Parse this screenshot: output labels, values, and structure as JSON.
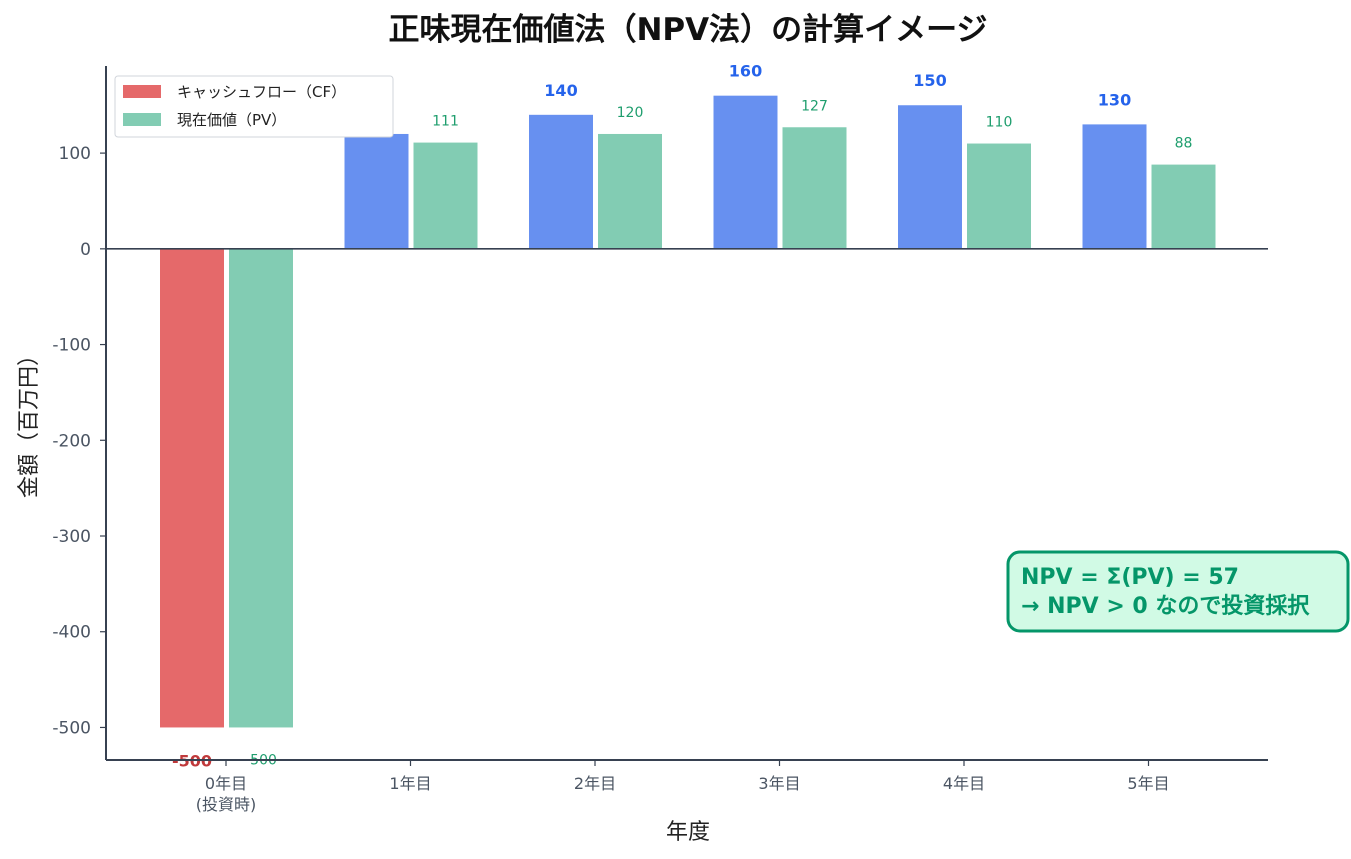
{
  "chart_data": {
    "type": "bar",
    "title": "正味現在価値法（NPV法）の計算イメージ",
    "xlabel": "年度",
    "ylabel": "金額（百万円）",
    "categories": [
      [
        "0年目",
        "(投資時)"
      ],
      [
        "1年目"
      ],
      [
        "2年目"
      ],
      [
        "3年目"
      ],
      [
        "4年目"
      ],
      [
        "5年目"
      ]
    ],
    "series": [
      {
        "name": "キャッシュフロー（CF）",
        "values": [
          -500,
          120,
          140,
          160,
          150,
          130
        ]
      },
      {
        "name": "現在価値（PV）",
        "values": [
          -500,
          111,
          120,
          127,
          110,
          88
        ]
      }
    ],
    "ylim": [
      -534,
      191
    ],
    "yticks": [
      -500,
      -400,
      -300,
      -200,
      -100,
      0,
      100
    ],
    "grid": false,
    "legend_position": "upper-left",
    "colors": {
      "cf_negative": "#e5696a",
      "cf_positive": "#6790f0",
      "pv": "#82ccb3",
      "cf_negative_label": "#c0393b",
      "cf_positive_label": "#2563eb",
      "pv_label": "#1f9e6e",
      "npv_box_fill": "#d1fae5",
      "npv_box_stroke": "#059669",
      "axis": "#374151"
    },
    "annotation": {
      "line1": "NPV = Σ(PV) = 57",
      "line2": "→ NPV > 0 なので投資採択"
    }
  }
}
